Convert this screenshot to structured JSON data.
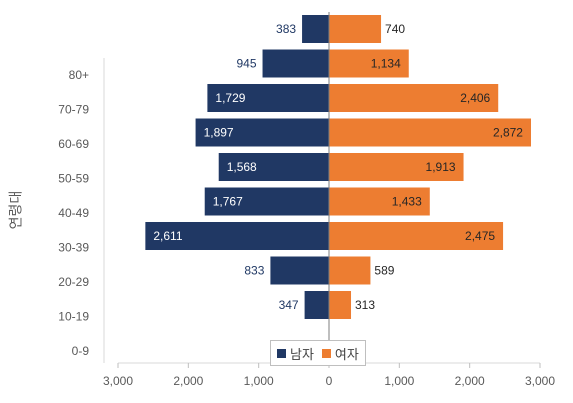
{
  "chart_data": {
    "type": "bar",
    "orientation": "horizontal",
    "ylabel": "연령대",
    "xlim": [
      -3000,
      3000
    ],
    "x_ticks": [
      "3,000",
      "2,000",
      "1,000",
      "0",
      "1,000",
      "2,000",
      "3,000"
    ],
    "categories": [
      "0-9",
      "10-19",
      "20-29",
      "30-39",
      "40-49",
      "50-59",
      "60-69",
      "70-79",
      "80+"
    ],
    "series": [
      {
        "name": "남자",
        "color": "#203864",
        "values": [
          383,
          945,
          1729,
          1897,
          1568,
          1767,
          2611,
          833,
          347
        ],
        "labels": [
          "383",
          "945",
          "1,729",
          "1,897",
          "1,568",
          "1,767",
          "2,611",
          "833",
          "347"
        ]
      },
      {
        "name": "여자",
        "color": "#ed7d31",
        "values": [
          740,
          1134,
          2406,
          2872,
          1913,
          1433,
          2475,
          589,
          313
        ],
        "labels": [
          "740",
          "1,134",
          "2,406",
          "2,872",
          "1,913",
          "1,433",
          "2,475",
          "589",
          "313"
        ]
      }
    ],
    "legend_position": "bottom-center",
    "grid": false
  }
}
